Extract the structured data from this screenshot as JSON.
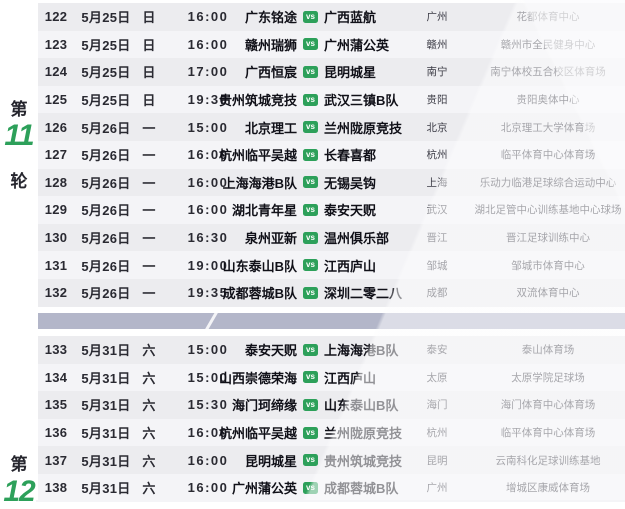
{
  "colors": {
    "accent_green": "#2da05a",
    "divider": "#b3b6c9"
  },
  "vs_label": "vs",
  "sections": [
    {
      "round_prefix": "第",
      "round_number": "11",
      "round_suffix": "轮",
      "matches": [
        {
          "no": "122",
          "date": "5月25日",
          "weekday": "日",
          "time": "16:00",
          "home": "广东铭途",
          "away": "广西蓝航",
          "city": "广州",
          "venue": "花都体育中心"
        },
        {
          "no": "123",
          "date": "5月25日",
          "weekday": "日",
          "time": "16:00",
          "home": "赣州瑞狮",
          "away": "广州蒲公英",
          "city": "赣州",
          "venue": "赣州市全民健身中心"
        },
        {
          "no": "124",
          "date": "5月25日",
          "weekday": "日",
          "time": "17:00",
          "home": "广西恒宸",
          "away": "昆明城星",
          "city": "南宁",
          "venue": "南宁体校五合校区体育场"
        },
        {
          "no": "125",
          "date": "5月25日",
          "weekday": "日",
          "time": "19:30",
          "home": "贵州筑城竞技",
          "away": "武汉三镇B队",
          "city": "贵阳",
          "venue": "贵阳奥体中心"
        },
        {
          "no": "126",
          "date": "5月26日",
          "weekday": "一",
          "time": "15:00",
          "home": "北京理工",
          "away": "兰州陇原竞技",
          "city": "北京",
          "venue": "北京理工大学体育场"
        },
        {
          "no": "127",
          "date": "5月26日",
          "weekday": "一",
          "time": "16:00",
          "home": "杭州临平吴越",
          "away": "长春喜都",
          "city": "杭州",
          "venue": "临平体育中心体育场"
        },
        {
          "no": "128",
          "date": "5月26日",
          "weekday": "一",
          "time": "16:00",
          "home": "上海海港B队",
          "away": "无锡吴钩",
          "city": "上海",
          "venue": "乐动力临港足球综合运动中心"
        },
        {
          "no": "129",
          "date": "5月26日",
          "weekday": "一",
          "time": "16:00",
          "home": "湖北青年星",
          "away": "泰安天贶",
          "city": "武汉",
          "venue": "湖北足管中心训练基地中心球场"
        },
        {
          "no": "130",
          "date": "5月26日",
          "weekday": "一",
          "time": "16:30",
          "home": "泉州亚新",
          "away": "温州俱乐部",
          "city": "晋江",
          "venue": "晋江足球训练中心"
        },
        {
          "no": "131",
          "date": "5月26日",
          "weekday": "一",
          "time": "19:00",
          "home": "山东泰山B队",
          "away": "江西庐山",
          "city": "邹城",
          "venue": "邹城市体育中心"
        },
        {
          "no": "132",
          "date": "5月26日",
          "weekday": "一",
          "time": "19:35",
          "home": "成都蓉城B队",
          "away": "深圳二零二八",
          "city": "成都",
          "venue": "双流体育中心"
        }
      ]
    },
    {
      "round_prefix": "第",
      "round_number": "12",
      "matches": [
        {
          "no": "133",
          "date": "5月31日",
          "weekday": "六",
          "time": "15:00",
          "home": "泰安天贶",
          "away": "上海海港B队",
          "city": "泰安",
          "venue": "泰山体育场"
        },
        {
          "no": "134",
          "date": "5月31日",
          "weekday": "六",
          "time": "15:00",
          "home": "山西崇德荣海",
          "away": "江西庐山",
          "city": "太原",
          "venue": "太原学院足球场"
        },
        {
          "no": "135",
          "date": "5月31日",
          "weekday": "六",
          "time": "15:30",
          "home": "海门珂缔缘",
          "away": "山东泰山B队",
          "city": "海门",
          "venue": "海门体育中心体育场"
        },
        {
          "no": "136",
          "date": "5月31日",
          "weekday": "六",
          "time": "16:00",
          "home": "杭州临平吴越",
          "away": "兰州陇原竞技",
          "city": "杭州",
          "venue": "临平体育中心体育场"
        },
        {
          "no": "137",
          "date": "5月31日",
          "weekday": "六",
          "time": "16:00",
          "home": "昆明城星",
          "away": "贵州筑城竞技",
          "city": "昆明",
          "venue": "云南科化足球训练基地"
        },
        {
          "no": "138",
          "date": "5月31日",
          "weekday": "六",
          "time": "16:00",
          "home": "广州蒲公英",
          "away": "成都蓉城B队",
          "city": "广州",
          "venue": "增城区康威体育场"
        }
      ]
    }
  ]
}
